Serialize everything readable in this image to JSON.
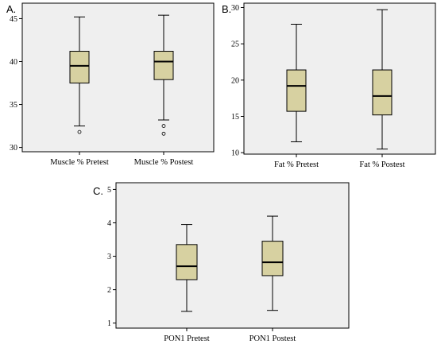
{
  "chart_data": [
    {
      "type": "box",
      "panel_label": "A.",
      "categories": [
        "Muscle % Pretest",
        "Muscle % Postest"
      ],
      "ylim": [
        29.5,
        46.8
      ],
      "yticks": [
        30,
        35,
        40,
        45
      ],
      "boxes": [
        {
          "min": 32.5,
          "q1": 37.5,
          "median": 39.5,
          "q3": 41.2,
          "max": 45.2,
          "outliers": [
            31.8
          ]
        },
        {
          "min": 33.2,
          "q1": 37.9,
          "median": 40.0,
          "q3": 41.2,
          "max": 45.4,
          "outliers": [
            32.5,
            31.6
          ]
        }
      ],
      "colors": {
        "box": "#d7d1a1",
        "background": "#efefef"
      }
    },
    {
      "type": "box",
      "panel_label": "B.",
      "categories": [
        "Fat % Pretest",
        "Fat % Postest"
      ],
      "ylim": [
        9.8,
        30.6
      ],
      "yticks": [
        10,
        15,
        20,
        25,
        30
      ],
      "boxes": [
        {
          "min": 11.5,
          "q1": 15.7,
          "median": 19.2,
          "q3": 21.4,
          "max": 27.7,
          "outliers": []
        },
        {
          "min": 10.5,
          "q1": 15.2,
          "median": 17.8,
          "q3": 21.4,
          "max": 29.7,
          "outliers": []
        }
      ],
      "colors": {
        "box": "#d7d1a1",
        "background": "#efefef"
      }
    },
    {
      "type": "box",
      "panel_label": "C.",
      "categories": [
        "PON1 Pretest",
        "PON1 Postest"
      ],
      "ylim": [
        0.85,
        5.2
      ],
      "yticks": [
        1,
        2,
        3,
        4,
        5
      ],
      "boxes": [
        {
          "min": 1.35,
          "q1": 2.3,
          "median": 2.7,
          "q3": 3.35,
          "max": 3.95,
          "outliers": []
        },
        {
          "min": 1.38,
          "q1": 2.42,
          "median": 2.82,
          "q3": 3.45,
          "max": 4.2,
          "outliers": []
        }
      ],
      "colors": {
        "box": "#d7d1a1",
        "background": "#efefef"
      }
    }
  ]
}
